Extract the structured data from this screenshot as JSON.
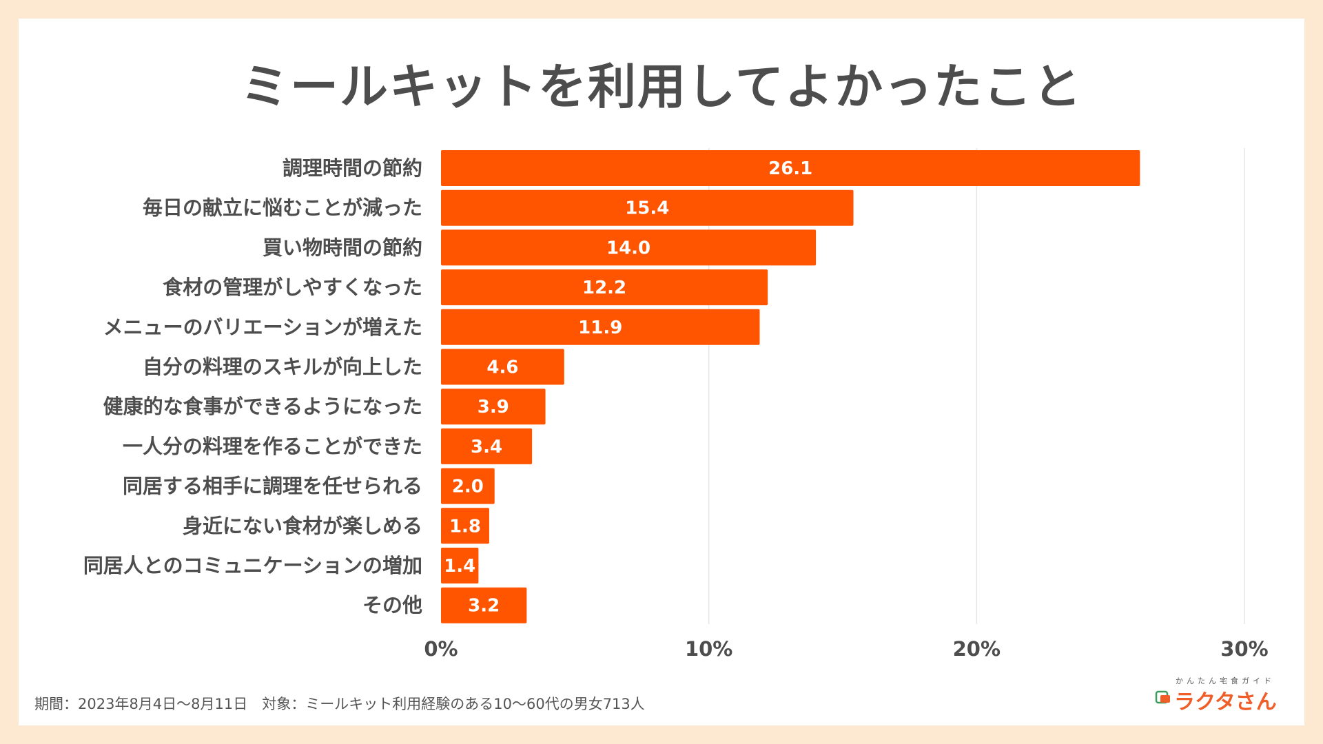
{
  "colors": {
    "bar": "#ff5500",
    "bar_label": "#ffffff",
    "category_text": "#4d4d4d",
    "tick_text": "#4d4d4d",
    "grid": "#e6e6e6",
    "background": "#fde9d2",
    "card": "#ffffff",
    "logo_accent": "#ef5d29",
    "logo_green": "#3a9d5d"
  },
  "chart_data": {
    "type": "bar",
    "orientation": "horizontal",
    "title": "ミールキットを利用してよかったこと",
    "categories": [
      "調理時間の節約",
      "毎日の献立に悩むことが減った",
      "買い物時間の節約",
      "食材の管理がしやすくなった",
      "メニューのバリエーションが増えた",
      "自分の料理のスキルが向上した",
      "健康的な食事ができるようになった",
      "一人分の料理を作ることができた",
      "同居する相手に調理を任せられる",
      "身近にない食材が楽しめる",
      "同居人とのコミュニケーションの増加",
      "その他"
    ],
    "values": [
      26.1,
      15.4,
      14.0,
      12.2,
      11.9,
      4.6,
      3.9,
      3.4,
      2.0,
      1.8,
      1.4,
      3.2
    ],
    "value_labels": [
      "26.1",
      "15.4",
      "14.0",
      "12.2",
      "11.9",
      "4.6",
      "3.9",
      "3.4",
      "2.0",
      "1.8",
      "1.4",
      "3.2"
    ],
    "xlim": [
      0,
      30
    ],
    "xticks": [
      0,
      10,
      20,
      30
    ],
    "xtick_labels": [
      "0%",
      "10%",
      "20%",
      "30%"
    ],
    "xlabel": "",
    "ylabel": "",
    "grid": true
  },
  "footnote": "期間：2023年8月4日〜8月11日　対象：ミールキット利用経験のある10〜60代の男女713人",
  "logo": {
    "subtitle": "かんたん宅食ガイド",
    "name": "ラクタさん",
    "icon": "plate-icon"
  }
}
